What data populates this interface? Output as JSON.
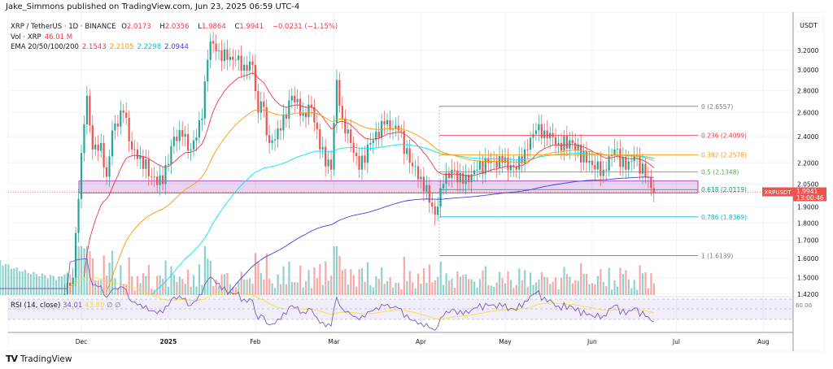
{
  "header": {
    "published": "Jake_Simmons published on TradingView.com, Jun 23, 2025 06:59 UTC-4"
  },
  "legend": {
    "symbol": "XRP / TetherUS · 1D · BINANCE",
    "o_label": "O",
    "o": "2.0173",
    "h_label": "H",
    "h": "2.0356",
    "l_label": "L",
    "l": "1.9864",
    "c_label": "C",
    "c": "1.9941",
    "change": "−0.0231 (−1.15%)",
    "vol_label": "Vol · XRP",
    "vol": "46.01 M",
    "ema_label": "EMA 20/50/100/200",
    "ema20": "2.1543",
    "ema50": "2.2105",
    "ema100": "2.2298",
    "ema200": "2.0944",
    "rsi_label": "RSI (14, close)",
    "rsi": "34.01",
    "rsi_ma": "43.80"
  },
  "colors": {
    "up": "#26a69a",
    "down": "#ef5350",
    "ema20": "#f23645",
    "ema50": "#ff9800",
    "ema100": "#00e5ff",
    "ema200": "#3f3fe0",
    "rsi": "#7e57c2",
    "rsi_ma": "#f5e025",
    "zone": "#9c27b0"
  },
  "price_axis": {
    "unit": "USDT",
    "ticks": [
      "3.2000",
      "3.0000",
      "2.8000",
      "2.6000",
      "2.4000",
      "2.2000",
      "2.0500",
      "1.9000",
      "1.8000",
      "1.7000",
      "1.6000",
      "1.5000",
      "1.4200"
    ],
    "rsi_tick": "60.00"
  },
  "last_price": {
    "symbol": "XRPUSDT",
    "price": "1.9941",
    "countdown": "13:00:46"
  },
  "time_axis": [
    "Dec",
    "2025",
    "Feb",
    "Mar",
    "Apr",
    "May",
    "Jun",
    "Jul",
    "Aug"
  ],
  "fib": [
    {
      "label": "0 (2.6557)",
      "level": 2.6557,
      "color": "#787b86"
    },
    {
      "label": "0.236 (2.4099)",
      "level": 2.4099,
      "color": "#f23645"
    },
    {
      "label": "0.382 (2.2578)",
      "level": 2.2578,
      "color": "#ff9800"
    },
    {
      "label": "0.5 (2.1348)",
      "level": 2.1348,
      "color": "#4caf50"
    },
    {
      "label": "0.618 (2.0119)",
      "level": 2.0119,
      "color": "#089981"
    },
    {
      "label": "0.786 (1.8369)",
      "level": 1.8369,
      "color": "#00bcd4"
    },
    {
      "label": "1 (1.6139)",
      "level": 1.6139,
      "color": "#787b86"
    }
  ],
  "footer": {
    "brand": "TradingView"
  },
  "chart_data": {
    "type": "candlestick",
    "scale": "log",
    "ylim": [
      1.42,
      3.35
    ],
    "support_zone": [
      1.99,
      2.07
    ],
    "closes": [
      [
        "2024-11-25",
        1.42
      ],
      [
        "2024-11-28",
        1.5
      ],
      [
        "2024-11-30",
        1.95
      ],
      [
        "2024-12-02",
        2.5
      ],
      [
        "2024-12-03",
        2.75
      ],
      [
        "2024-12-05",
        2.3
      ],
      [
        "2024-12-08",
        2.35
      ],
      [
        "2024-12-10",
        2.1
      ],
      [
        "2024-12-12",
        2.45
      ],
      [
        "2024-12-16",
        2.6
      ],
      [
        "2024-12-19",
        2.3
      ],
      [
        "2024-12-22",
        2.25
      ],
      [
        "2024-12-26",
        2.1
      ],
      [
        "2024-12-30",
        2.05
      ],
      [
        "2025-01-03",
        2.4
      ],
      [
        "2025-01-06",
        2.4
      ],
      [
        "2025-01-09",
        2.3
      ],
      [
        "2025-01-13",
        2.55
      ],
      [
        "2025-01-15",
        3.1
      ],
      [
        "2025-01-16",
        3.3
      ],
      [
        "2025-01-19",
        3.2
      ],
      [
        "2025-01-22",
        3.1
      ],
      [
        "2025-01-25",
        3.1
      ],
      [
        "2025-01-28",
        3.05
      ],
      [
        "2025-01-31",
        3.05
      ],
      [
        "2025-02-02",
        2.6
      ],
      [
        "2025-02-03",
        2.7
      ],
      [
        "2025-02-06",
        2.35
      ],
      [
        "2025-02-10",
        2.45
      ],
      [
        "2025-02-14",
        2.75
      ],
      [
        "2025-02-18",
        2.6
      ],
      [
        "2025-02-21",
        2.65
      ],
      [
        "2025-02-24",
        2.3
      ],
      [
        "2025-02-28",
        2.15
      ],
      [
        "2025-03-02",
        2.9
      ],
      [
        "2025-03-04",
        2.55
      ],
      [
        "2025-03-07",
        2.35
      ],
      [
        "2025-03-10",
        2.15
      ],
      [
        "2025-03-14",
        2.35
      ],
      [
        "2025-03-19",
        2.5
      ],
      [
        "2025-03-24",
        2.45
      ],
      [
        "2025-03-28",
        2.2
      ],
      [
        "2025-04-01",
        2.1
      ],
      [
        "2025-04-06",
        1.85
      ],
      [
        "2025-04-07",
        1.9
      ],
      [
        "2025-04-09",
        2.05
      ],
      [
        "2025-04-12",
        2.15
      ],
      [
        "2025-04-16",
        2.05
      ],
      [
        "2025-04-21",
        2.15
      ],
      [
        "2025-04-25",
        2.2
      ],
      [
        "2025-04-30",
        2.2
      ],
      [
        "2025-05-05",
        2.15
      ],
      [
        "2025-05-08",
        2.3
      ],
      [
        "2025-05-12",
        2.45
      ],
      [
        "2025-05-15",
        2.45
      ],
      [
        "2025-05-20",
        2.35
      ],
      [
        "2025-05-25",
        2.35
      ],
      [
        "2025-05-30",
        2.2
      ],
      [
        "2025-06-05",
        2.15
      ],
      [
        "2025-06-09",
        2.3
      ],
      [
        "2025-06-13",
        2.15
      ],
      [
        "2025-06-16",
        2.25
      ],
      [
        "2025-06-20",
        2.1
      ],
      [
        "2025-06-23",
        1.9941
      ]
    ]
  }
}
